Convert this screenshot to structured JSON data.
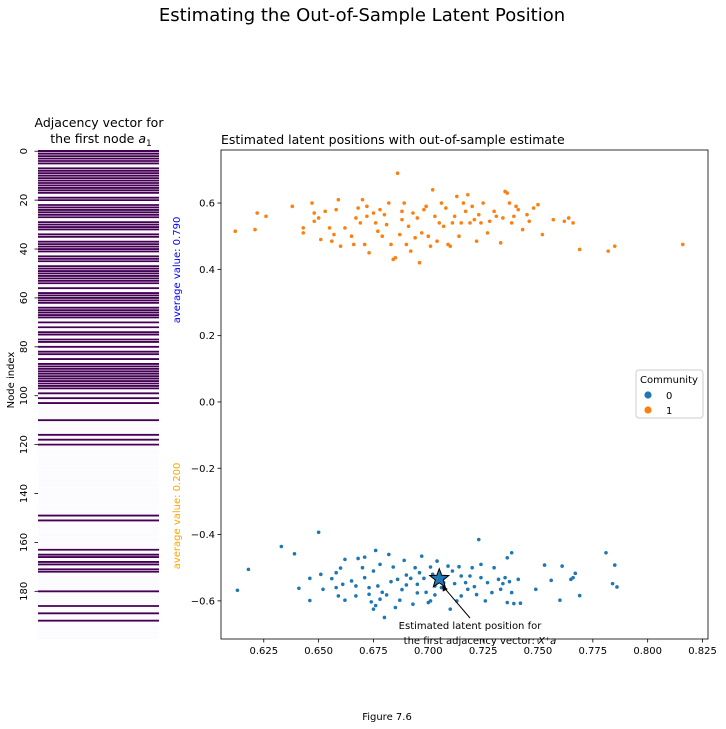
{
  "figure": {
    "suptitle": "Estimating the Out-of-Sample Latent Position",
    "caption": "Figure 7.6"
  },
  "chart_data": [
    {
      "type": "heatmap",
      "title_line1": "Adjacency vector for",
      "title_line2": "the first node",
      "title_symbol": "a",
      "title_subscript": "1",
      "ylabel": "Node index",
      "yticks": [
        0,
        20,
        40,
        60,
        80,
        100,
        120,
        140,
        160,
        180
      ],
      "n_nodes": 200,
      "colors": {
        "one": "#440154",
        "zero": "#fbfaff",
        "separator": "#ffffff"
      },
      "zero_ranges": [
        [
          6,
          7
        ],
        [
          18,
          19
        ],
        [
          21,
          22
        ],
        [
          28,
          29
        ],
        [
          33,
          34
        ],
        [
          36,
          37
        ],
        [
          42,
          43
        ],
        [
          46,
          47
        ],
        [
          55,
          56
        ],
        [
          57,
          58
        ],
        [
          63,
          64
        ],
        [
          69,
          70
        ],
        [
          71,
          72
        ],
        [
          73,
          74
        ],
        [
          76,
          77
        ],
        [
          79,
          80
        ],
        [
          81,
          82
        ],
        [
          84,
          85
        ],
        [
          86,
          87
        ],
        [
          98,
          99
        ],
        [
          100,
          101
        ],
        [
          102,
          103
        ],
        [
          104,
          110
        ],
        [
          111,
          116
        ],
        [
          117,
          118
        ],
        [
          119,
          120
        ],
        [
          121,
          149
        ],
        [
          150,
          151
        ],
        [
          152,
          163
        ],
        [
          164,
          165
        ],
        [
          167,
          168
        ],
        [
          170,
          171
        ],
        [
          173,
          180
        ],
        [
          181,
          186
        ],
        [
          187,
          189
        ],
        [
          190,
          192
        ],
        [
          193,
          201
        ]
      ],
      "annotations": [
        {
          "text": "average value: 0.790",
          "color": "#0000ff"
        },
        {
          "text": "average value: 0.200",
          "color": "#ffa500"
        }
      ]
    },
    {
      "type": "scatter",
      "title": "Estimated latent positions with out-of-sample estimate",
      "xlim": [
        0.6055,
        0.8275
      ],
      "ylim": [
        -0.715,
        0.76
      ],
      "xticks": [
        0.625,
        0.65,
        0.675,
        0.7,
        0.725,
        0.75,
        0.775,
        0.8,
        0.825
      ],
      "yticks": [
        -0.6,
        -0.4,
        -0.2,
        0.0,
        0.2,
        0.4,
        0.6
      ],
      "ytick_labels": [
        "−0.6",
        "−0.4",
        "−0.2",
        "0.0",
        "0.2",
        "0.4",
        "0.6"
      ],
      "legend": {
        "title": "Community",
        "placement": "center-right",
        "entries": [
          "0",
          "1"
        ]
      },
      "series": [
        {
          "name": "0",
          "color": "#1f77b4",
          "points": [
            [
              0.613,
              -0.568
            ],
            [
              0.618,
              -0.505
            ],
            [
              0.633,
              -0.436
            ],
            [
              0.639,
              -0.458
            ],
            [
              0.641,
              -0.562
            ],
            [
              0.646,
              -0.532
            ],
            [
              0.646,
              -0.599
            ],
            [
              0.65,
              -0.393
            ],
            [
              0.651,
              -0.52
            ],
            [
              0.652,
              -0.565
            ],
            [
              0.656,
              -0.533
            ],
            [
              0.658,
              -0.56
            ],
            [
              0.658,
              -0.515
            ],
            [
              0.659,
              -0.585
            ],
            [
              0.66,
              -0.501
            ],
            [
              0.661,
              -0.55
            ],
            [
              0.662,
              -0.598
            ],
            [
              0.662,
              -0.475
            ],
            [
              0.665,
              -0.54
            ],
            [
              0.667,
              -0.555
            ],
            [
              0.667,
              -0.585
            ],
            [
              0.668,
              -0.472
            ],
            [
              0.67,
              -0.5
            ],
            [
              0.671,
              -0.53
            ],
            [
              0.671,
              -0.468
            ],
            [
              0.673,
              -0.56
            ],
            [
              0.673,
              -0.58
            ],
            [
              0.674,
              -0.603
            ],
            [
              0.675,
              -0.625
            ],
            [
              0.675,
              -0.51
            ],
            [
              0.676,
              -0.448
            ],
            [
              0.676,
              -0.614
            ],
            [
              0.677,
              -0.555
            ],
            [
              0.678,
              -0.49
            ],
            [
              0.678,
              -0.595
            ],
            [
              0.679,
              -0.574
            ],
            [
              0.68,
              -0.65
            ],
            [
              0.681,
              -0.582
            ],
            [
              0.682,
              -0.46
            ],
            [
              0.683,
              -0.542
            ],
            [
              0.684,
              -0.498
            ],
            [
              0.685,
              -0.62
            ],
            [
              0.686,
              -0.535
            ],
            [
              0.687,
              -0.598
            ],
            [
              0.688,
              -0.566
            ],
            [
              0.689,
              -0.478
            ],
            [
              0.69,
              -0.522
            ],
            [
              0.69,
              -0.552
            ],
            [
              0.692,
              -0.532
            ],
            [
              0.693,
              -0.61
            ],
            [
              0.694,
              -0.5
            ],
            [
              0.695,
              -0.55
            ],
            [
              0.695,
              -0.576
            ],
            [
              0.696,
              -0.515
            ],
            [
              0.697,
              -0.465
            ],
            [
              0.698,
              -0.532
            ],
            [
              0.699,
              -0.574
            ],
            [
              0.7,
              -0.605
            ],
            [
              0.701,
              -0.6
            ],
            [
              0.701,
              -0.498
            ],
            [
              0.702,
              -0.52
            ],
            [
              0.703,
              -0.555
            ],
            [
              0.703,
              -0.582
            ],
            [
              0.704,
              -0.48
            ],
            [
              0.706,
              -0.56
            ],
            [
              0.707,
              -0.545
            ],
            [
              0.709,
              -0.495
            ],
            [
              0.71,
              -0.625
            ],
            [
              0.711,
              -0.51
            ],
            [
              0.712,
              -0.548
            ],
            [
              0.713,
              -0.6
            ],
            [
              0.714,
              -0.497
            ],
            [
              0.715,
              -0.525
            ],
            [
              0.715,
              -0.585
            ],
            [
              0.717,
              -0.545
            ],
            [
              0.718,
              -0.565
            ],
            [
              0.719,
              -0.525
            ],
            [
              0.72,
              -0.5
            ],
            [
              0.721,
              -0.557
            ],
            [
              0.722,
              -0.581
            ],
            [
              0.723,
              -0.415
            ],
            [
              0.724,
              -0.49
            ],
            [
              0.724,
              -0.53
            ],
            [
              0.726,
              -0.6
            ],
            [
              0.727,
              -0.545
            ],
            [
              0.729,
              -0.575
            ],
            [
              0.73,
              -0.5
            ],
            [
              0.732,
              -0.535
            ],
            [
              0.733,
              -0.565
            ],
            [
              0.734,
              -0.548
            ],
            [
              0.735,
              -0.53
            ],
            [
              0.736,
              -0.47
            ],
            [
              0.736,
              -0.605
            ],
            [
              0.737,
              -0.542
            ],
            [
              0.738,
              -0.575
            ],
            [
              0.738,
              -0.455
            ],
            [
              0.739,
              -0.608
            ],
            [
              0.741,
              -0.535
            ],
            [
              0.742,
              -0.607
            ],
            [
              0.749,
              -0.565
            ],
            [
              0.753,
              -0.492
            ],
            [
              0.756,
              -0.538
            ],
            [
              0.76,
              -0.598
            ],
            [
              0.761,
              -0.495
            ],
            [
              0.765,
              -0.535
            ],
            [
              0.766,
              -0.53
            ],
            [
              0.767,
              -0.517
            ],
            [
              0.769,
              -0.584
            ],
            [
              0.781,
              -0.455
            ],
            [
              0.784,
              -0.548
            ],
            [
              0.785,
              -0.492
            ],
            [
              0.786,
              -0.558
            ]
          ]
        },
        {
          "name": "1",
          "color": "#ff7f0e",
          "points": [
            [
              0.612,
              0.515
            ],
            [
              0.621,
              0.52
            ],
            [
              0.622,
              0.57
            ],
            [
              0.626,
              0.56
            ],
            [
              0.638,
              0.59
            ],
            [
              0.643,
              0.51
            ],
            [
              0.643,
              0.525
            ],
            [
              0.647,
              0.6
            ],
            [
              0.648,
              0.545
            ],
            [
              0.648,
              0.57
            ],
            [
              0.65,
              0.555
            ],
            [
              0.651,
              0.49
            ],
            [
              0.653,
              0.575
            ],
            [
              0.655,
              0.525
            ],
            [
              0.656,
              0.485
            ],
            [
              0.657,
              0.505
            ],
            [
              0.658,
              0.58
            ],
            [
              0.659,
              0.61
            ],
            [
              0.66,
              0.47
            ],
            [
              0.662,
              0.525
            ],
            [
              0.665,
              0.5
            ],
            [
              0.666,
              0.475
            ],
            [
              0.667,
              0.555
            ],
            [
              0.668,
              0.585
            ],
            [
              0.669,
              0.54
            ],
            [
              0.67,
              0.61
            ],
            [
              0.671,
              0.475
            ],
            [
              0.672,
              0.56
            ],
            [
              0.672,
              0.59
            ],
            [
              0.673,
              0.45
            ],
            [
              0.675,
              0.57
            ],
            [
              0.676,
              0.54
            ],
            [
              0.677,
              0.515
            ],
            [
              0.678,
              0.58
            ],
            [
              0.679,
              0.5
            ],
            [
              0.68,
              0.565
            ],
            [
              0.681,
              0.535
            ],
            [
              0.682,
              0.6
            ],
            [
              0.683,
              0.475
            ],
            [
              0.684,
              0.43
            ],
            [
              0.685,
              0.435
            ],
            [
              0.686,
              0.69
            ],
            [
              0.687,
              0.505
            ],
            [
              0.688,
              0.575
            ],
            [
              0.688,
              0.55
            ],
            [
              0.689,
              0.6
            ],
            [
              0.69,
              0.475
            ],
            [
              0.691,
              0.53
            ],
            [
              0.692,
              0.455
            ],
            [
              0.693,
              0.57
            ],
            [
              0.694,
              0.495
            ],
            [
              0.695,
              0.555
            ],
            [
              0.696,
              0.42
            ],
            [
              0.697,
              0.51
            ],
            [
              0.698,
              0.58
            ],
            [
              0.699,
              0.59
            ],
            [
              0.7,
              0.5
            ],
            [
              0.701,
              0.47
            ],
            [
              0.702,
              0.64
            ],
            [
              0.703,
              0.56
            ],
            [
              0.704,
              0.485
            ],
            [
              0.705,
              0.54
            ],
            [
              0.706,
              0.6
            ],
            [
              0.707,
              0.53
            ],
            [
              0.708,
              0.585
            ],
            [
              0.709,
              0.475
            ],
            [
              0.71,
              0.47
            ],
            [
              0.711,
              0.54
            ],
            [
              0.712,
              0.56
            ],
            [
              0.713,
              0.62
            ],
            [
              0.714,
              0.5
            ],
            [
              0.715,
              0.54
            ],
            [
              0.716,
              0.6
            ],
            [
              0.717,
              0.575
            ],
            [
              0.718,
              0.625
            ],
            [
              0.719,
              0.54
            ],
            [
              0.72,
              0.59
            ],
            [
              0.721,
              0.55
            ],
            [
              0.722,
              0.485
            ],
            [
              0.723,
              0.565
            ],
            [
              0.724,
              0.54
            ],
            [
              0.725,
              0.6
            ],
            [
              0.727,
              0.51
            ],
            [
              0.728,
              0.545
            ],
            [
              0.73,
              0.575
            ],
            [
              0.731,
              0.56
            ],
            [
              0.733,
              0.48
            ],
            [
              0.734,
              0.555
            ],
            [
              0.735,
              0.635
            ],
            [
              0.736,
              0.63
            ],
            [
              0.737,
              0.6
            ],
            [
              0.738,
              0.54
            ],
            [
              0.739,
              0.56
            ],
            [
              0.74,
              0.59
            ],
            [
              0.741,
              0.58
            ],
            [
              0.743,
              0.52
            ],
            [
              0.745,
              0.565
            ],
            [
              0.746,
              0.545
            ],
            [
              0.748,
              0.585
            ],
            [
              0.75,
              0.595
            ],
            [
              0.752,
              0.505
            ],
            [
              0.757,
              0.55
            ],
            [
              0.762,
              0.545
            ],
            [
              0.764,
              0.555
            ],
            [
              0.766,
              0.54
            ],
            [
              0.769,
              0.46
            ],
            [
              0.782,
              0.455
            ],
            [
              0.785,
              0.47
            ],
            [
              0.816,
              0.475
            ]
          ]
        }
      ],
      "estimate": {
        "x": 0.705,
        "y": -0.533,
        "color": "#1f77b4",
        "text_line1": "Estimated latent position for",
        "text_line2": "the first adjacency vector: ",
        "text_formula": "X⁺a"
      }
    }
  ]
}
